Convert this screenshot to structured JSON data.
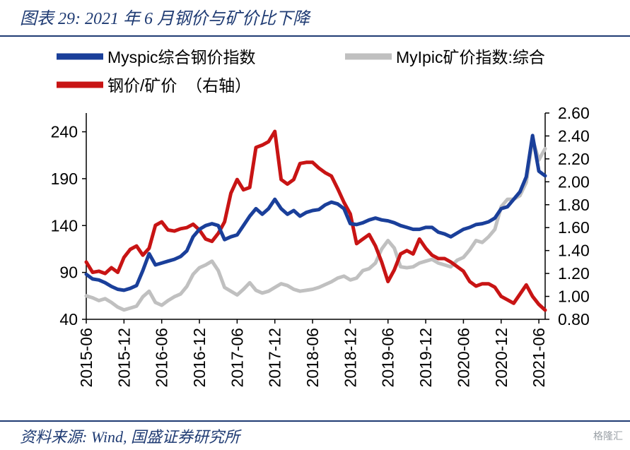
{
  "title": "图表 29:  2021 年 6 月钢价与矿价比下降",
  "source": "资料来源:  Wind,  国盛证券研究所",
  "watermark": "格隆汇",
  "chart_data": {
    "type": "line",
    "title": "",
    "x_ticks": [
      "2015-06",
      "2015-12",
      "2016-06",
      "2016-12",
      "2017-06",
      "2017-12",
      "2018-06",
      "2018-12",
      "2019-06",
      "2019-12",
      "2020-06",
      "2020-12",
      "2021-06"
    ],
    "y_left_ticks": [
      "40",
      "90",
      "140",
      "190",
      "240"
    ],
    "y_right_ticks": [
      "0.80",
      "1.00",
      "1.20",
      "1.40",
      "1.60",
      "1.80",
      "2.00",
      "2.20",
      "2.40",
      "2.60"
    ],
    "y_left_lim": [
      40,
      260
    ],
    "y_right_lim": [
      0.8,
      2.6
    ],
    "x_range": [
      "2015-06",
      "2021-07"
    ],
    "legend_placement": "top",
    "grid": false,
    "series": [
      {
        "name": "Myspic综合钢价指数",
        "axis": "left",
        "color": "#1a3f9a",
        "points": [
          [
            "2015-06",
            88
          ],
          [
            "2015-07",
            83
          ],
          [
            "2015-08",
            82
          ],
          [
            "2015-09",
            79
          ],
          [
            "2015-10",
            75
          ],
          [
            "2015-11",
            72
          ],
          [
            "2015-12",
            71
          ],
          [
            "2016-01",
            73
          ],
          [
            "2016-02",
            76
          ],
          [
            "2016-03",
            92
          ],
          [
            "2016-04",
            110
          ],
          [
            "2016-05",
            98
          ],
          [
            "2016-06",
            100
          ],
          [
            "2016-07",
            102
          ],
          [
            "2016-08",
            104
          ],
          [
            "2016-09",
            107
          ],
          [
            "2016-10",
            113
          ],
          [
            "2016-11",
            128
          ],
          [
            "2016-12",
            136
          ],
          [
            "2017-01",
            140
          ],
          [
            "2017-02",
            142
          ],
          [
            "2017-03",
            140
          ],
          [
            "2017-04",
            125
          ],
          [
            "2017-05",
            128
          ],
          [
            "2017-06",
            130
          ],
          [
            "2017-07",
            140
          ],
          [
            "2017-08",
            150
          ],
          [
            "2017-09",
            158
          ],
          [
            "2017-10",
            152
          ],
          [
            "2017-11",
            158
          ],
          [
            "2017-12",
            168
          ],
          [
            "2018-01",
            158
          ],
          [
            "2018-02",
            152
          ],
          [
            "2018-03",
            156
          ],
          [
            "2018-04",
            150
          ],
          [
            "2018-05",
            154
          ],
          [
            "2018-06",
            156
          ],
          [
            "2018-07",
            157
          ],
          [
            "2018-08",
            162
          ],
          [
            "2018-09",
            165
          ],
          [
            "2018-10",
            163
          ],
          [
            "2018-11",
            158
          ],
          [
            "2018-12",
            142
          ],
          [
            "2019-01",
            141
          ],
          [
            "2019-02",
            143
          ],
          [
            "2019-03",
            146
          ],
          [
            "2019-04",
            148
          ],
          [
            "2019-05",
            146
          ],
          [
            "2019-06",
            145
          ],
          [
            "2019-07",
            143
          ],
          [
            "2019-08",
            140
          ],
          [
            "2019-09",
            138
          ],
          [
            "2019-10",
            136
          ],
          [
            "2019-11",
            136
          ],
          [
            "2019-12",
            138
          ],
          [
            "2020-01",
            138
          ],
          [
            "2020-02",
            133
          ],
          [
            "2020-03",
            131
          ],
          [
            "2020-04",
            128
          ],
          [
            "2020-05",
            132
          ],
          [
            "2020-06",
            136
          ],
          [
            "2020-07",
            138
          ],
          [
            "2020-08",
            141
          ],
          [
            "2020-09",
            142
          ],
          [
            "2020-10",
            144
          ],
          [
            "2020-11",
            148
          ],
          [
            "2020-12",
            158
          ],
          [
            "2021-01",
            160
          ],
          [
            "2021-02",
            168
          ],
          [
            "2021-03",
            176
          ],
          [
            "2021-04",
            192
          ],
          [
            "2021-05",
            236
          ],
          [
            "2021-06",
            198
          ],
          [
            "2021-07",
            193
          ]
        ]
      },
      {
        "name": "MyIpic矿价指数:综合",
        "axis": "left",
        "color": "#c0c0c0",
        "points": [
          [
            "2015-06",
            65
          ],
          [
            "2015-07",
            63
          ],
          [
            "2015-08",
            60
          ],
          [
            "2015-09",
            62
          ],
          [
            "2015-10",
            58
          ],
          [
            "2015-11",
            53
          ],
          [
            "2015-12",
            50
          ],
          [
            "2016-01",
            52
          ],
          [
            "2016-02",
            54
          ],
          [
            "2016-03",
            64
          ],
          [
            "2016-04",
            70
          ],
          [
            "2016-05",
            58
          ],
          [
            "2016-06",
            55
          ],
          [
            "2016-07",
            60
          ],
          [
            "2016-08",
            64
          ],
          [
            "2016-09",
            67
          ],
          [
            "2016-10",
            75
          ],
          [
            "2016-11",
            88
          ],
          [
            "2016-12",
            95
          ],
          [
            "2017-01",
            98
          ],
          [
            "2017-02",
            102
          ],
          [
            "2017-03",
            92
          ],
          [
            "2017-04",
            74
          ],
          [
            "2017-05",
            70
          ],
          [
            "2017-06",
            66
          ],
          [
            "2017-07",
            72
          ],
          [
            "2017-08",
            79
          ],
          [
            "2017-09",
            71
          ],
          [
            "2017-10",
            68
          ],
          [
            "2017-11",
            70
          ],
          [
            "2017-12",
            74
          ],
          [
            "2018-01",
            78
          ],
          [
            "2018-02",
            76
          ],
          [
            "2018-03",
            72
          ],
          [
            "2018-04",
            70
          ],
          [
            "2018-05",
            71
          ],
          [
            "2018-06",
            72
          ],
          [
            "2018-07",
            74
          ],
          [
            "2018-08",
            77
          ],
          [
            "2018-09",
            80
          ],
          [
            "2018-10",
            84
          ],
          [
            "2018-11",
            86
          ],
          [
            "2018-12",
            82
          ],
          [
            "2019-01",
            84
          ],
          [
            "2019-02",
            92
          ],
          [
            "2019-03",
            94
          ],
          [
            "2019-04",
            100
          ],
          [
            "2019-05",
            115
          ],
          [
            "2019-06",
            124
          ],
          [
            "2019-07",
            116
          ],
          [
            "2019-08",
            96
          ],
          [
            "2019-09",
            95
          ],
          [
            "2019-10",
            96
          ],
          [
            "2019-11",
            100
          ],
          [
            "2019-12",
            102
          ],
          [
            "2020-01",
            104
          ],
          [
            "2020-02",
            100
          ],
          [
            "2020-03",
            98
          ],
          [
            "2020-04",
            96
          ],
          [
            "2020-05",
            103
          ],
          [
            "2020-06",
            106
          ],
          [
            "2020-07",
            114
          ],
          [
            "2020-08",
            124
          ],
          [
            "2020-09",
            122
          ],
          [
            "2020-10",
            128
          ],
          [
            "2020-11",
            136
          ],
          [
            "2020-12",
            160
          ],
          [
            "2021-01",
            168
          ],
          [
            "2021-02",
            168
          ],
          [
            "2021-03",
            172
          ],
          [
            "2021-04",
            186
          ],
          [
            "2021-05",
            232
          ],
          [
            "2021-06",
            210
          ],
          [
            "2021-07",
            222
          ]
        ]
      },
      {
        "name": "钢价/矿价  （右轴）",
        "axis": "right",
        "color": "#c81414",
        "points": [
          [
            "2015-06",
            1.3
          ],
          [
            "2015-07",
            1.21
          ],
          [
            "2015-08",
            1.22
          ],
          [
            "2015-09",
            1.2
          ],
          [
            "2015-10",
            1.25
          ],
          [
            "2015-11",
            1.21
          ],
          [
            "2015-12",
            1.34
          ],
          [
            "2016-01",
            1.41
          ],
          [
            "2016-02",
            1.44
          ],
          [
            "2016-03",
            1.36
          ],
          [
            "2016-04",
            1.42
          ],
          [
            "2016-05",
            1.62
          ],
          [
            "2016-06",
            1.65
          ],
          [
            "2016-07",
            1.58
          ],
          [
            "2016-08",
            1.57
          ],
          [
            "2016-09",
            1.59
          ],
          [
            "2016-10",
            1.6
          ],
          [
            "2016-11",
            1.63
          ],
          [
            "2016-12",
            1.58
          ],
          [
            "2017-01",
            1.5
          ],
          [
            "2017-02",
            1.48
          ],
          [
            "2017-03",
            1.55
          ],
          [
            "2017-04",
            1.65
          ],
          [
            "2017-05",
            1.9
          ],
          [
            "2017-06",
            2.02
          ],
          [
            "2017-07",
            1.93
          ],
          [
            "2017-08",
            1.95
          ],
          [
            "2017-09",
            2.3
          ],
          [
            "2017-10",
            2.32
          ],
          [
            "2017-11",
            2.35
          ],
          [
            "2017-12",
            2.44
          ],
          [
            "2018-01",
            2.02
          ],
          [
            "2018-02",
            1.98
          ],
          [
            "2018-03",
            2.02
          ],
          [
            "2018-04",
            2.16
          ],
          [
            "2018-05",
            2.17
          ],
          [
            "2018-06",
            2.17
          ],
          [
            "2018-07",
            2.12
          ],
          [
            "2018-08",
            2.08
          ],
          [
            "2018-09",
            2.05
          ],
          [
            "2018-10",
            1.94
          ],
          [
            "2018-11",
            1.82
          ],
          [
            "2018-12",
            1.72
          ],
          [
            "2019-01",
            1.46
          ],
          [
            "2019-02",
            1.5
          ],
          [
            "2019-03",
            1.54
          ],
          [
            "2019-04",
            1.44
          ],
          [
            "2019-05",
            1.3
          ],
          [
            "2019-06",
            1.13
          ],
          [
            "2019-07",
            1.23
          ],
          [
            "2019-08",
            1.37
          ],
          [
            "2019-09",
            1.4
          ],
          [
            "2019-10",
            1.37
          ],
          [
            "2019-11",
            1.5
          ],
          [
            "2019-12",
            1.42
          ],
          [
            "2020-01",
            1.36
          ],
          [
            "2020-02",
            1.33
          ],
          [
            "2020-03",
            1.33
          ],
          [
            "2020-04",
            1.3
          ],
          [
            "2020-05",
            1.26
          ],
          [
            "2020-06",
            1.22
          ],
          [
            "2020-07",
            1.13
          ],
          [
            "2020-08",
            1.09
          ],
          [
            "2020-09",
            1.11
          ],
          [
            "2020-10",
            1.11
          ],
          [
            "2020-11",
            1.08
          ],
          [
            "2020-12",
            1.0
          ],
          [
            "2021-01",
            0.97
          ],
          [
            "2021-02",
            0.94
          ],
          [
            "2021-03",
            1.02
          ],
          [
            "2021-04",
            1.1
          ],
          [
            "2021-05",
            1.0
          ],
          [
            "2021-06",
            0.93
          ],
          [
            "2021-07",
            0.88
          ]
        ]
      }
    ]
  }
}
